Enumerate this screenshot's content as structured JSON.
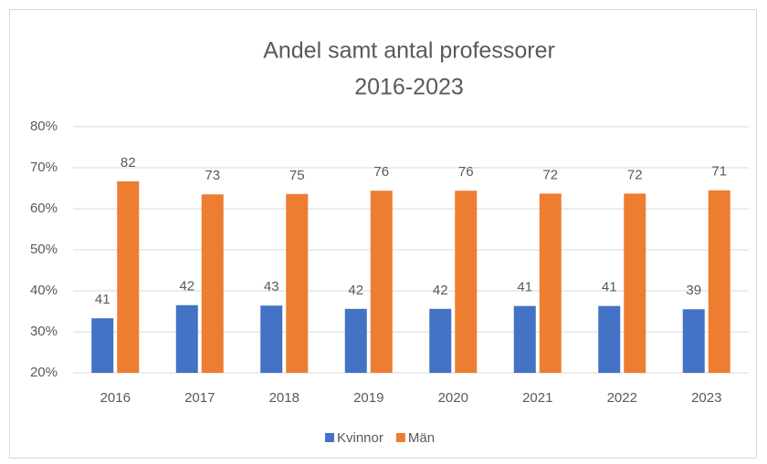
{
  "chart_data": {
    "type": "bar",
    "title": [
      "Andel samt antal professorer",
      "2016-2023"
    ],
    "categories": [
      "2016",
      "2017",
      "2018",
      "2019",
      "2020",
      "2021",
      "2022",
      "2023"
    ],
    "series": [
      {
        "name": "Kvinnor",
        "color": "#4472c4",
        "values": [
          33.3,
          36.5,
          36.4,
          35.6,
          35.6,
          36.3,
          36.3,
          35.5
        ],
        "counts": [
          41,
          42,
          43,
          42,
          42,
          41,
          41,
          39
        ]
      },
      {
        "name": "Män",
        "color": "#ed7d31",
        "values": [
          66.7,
          63.5,
          63.6,
          64.4,
          64.4,
          63.7,
          63.7,
          64.5
        ],
        "counts": [
          82,
          73,
          75,
          76,
          76,
          72,
          72,
          71
        ]
      }
    ],
    "ylim": [
      20,
      80
    ],
    "yticks": [
      {
        "value": 20,
        "label": "20%"
      },
      {
        "value": 30,
        "label": "30%"
      },
      {
        "value": 40,
        "label": "40%"
      },
      {
        "value": 50,
        "label": "50%"
      },
      {
        "value": 60,
        "label": "60%"
      },
      {
        "value": 70,
        "label": "70%"
      },
      {
        "value": 80,
        "label": "80%"
      }
    ],
    "grid": true,
    "legend": "bottom"
  }
}
